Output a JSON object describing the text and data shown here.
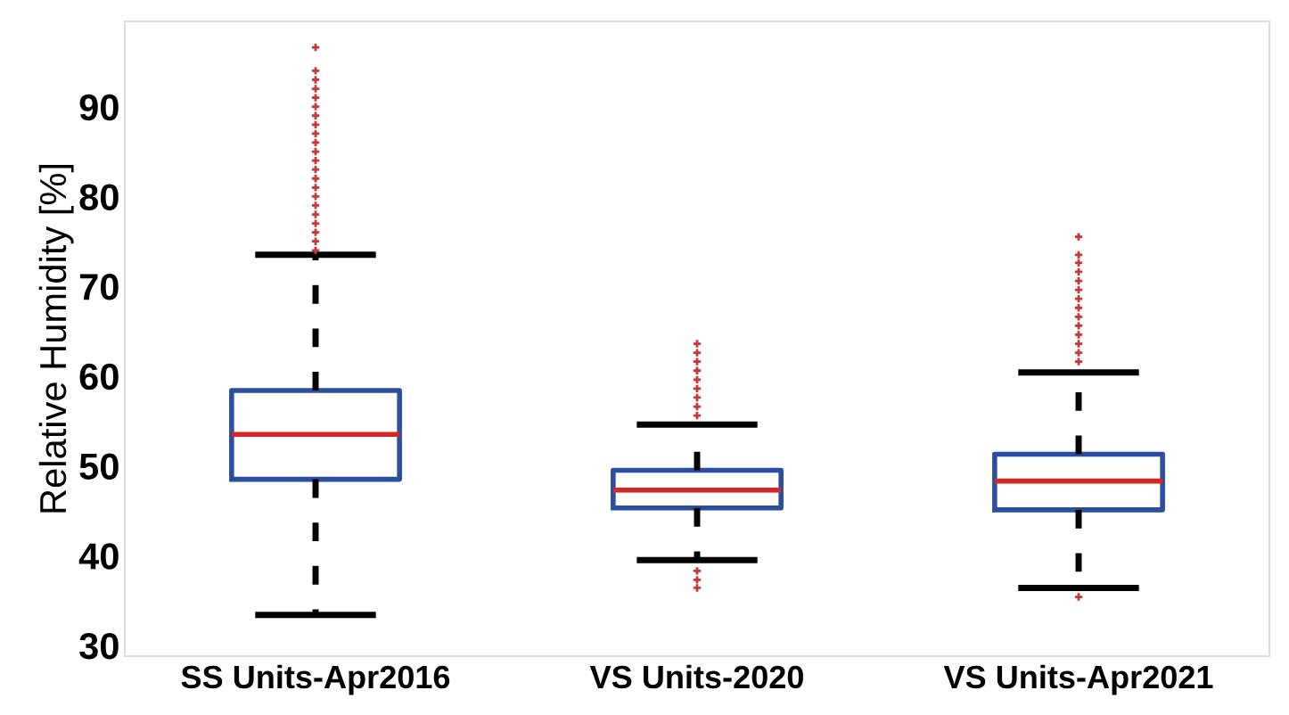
{
  "chart_data": {
    "type": "box",
    "ylabel": "Relative Humidity [%]",
    "categories": [
      "SS Units-Apr2016",
      "VS Units-2020",
      "VS Units-Apr2021"
    ],
    "ylim": [
      28.8,
      99.5
    ],
    "yticks": [
      30,
      40,
      50,
      60,
      70,
      80,
      90
    ],
    "grid": false,
    "color": "#2a4fa0",
    "marker": "cross",
    "line_style": "dashed",
    "boxes": [
      {
        "low": 33.4,
        "q1": 48.5,
        "median": 53.5,
        "q3": 58.4,
        "high": 73.5,
        "outliers": [
          74,
          75,
          76,
          77,
          78,
          79,
          80,
          81,
          82,
          83,
          84,
          85,
          86,
          87,
          88,
          89,
          90,
          91,
          92,
          93,
          94,
          96.6
        ]
      },
      {
        "low": 39.5,
        "q1": 45.3,
        "median": 47.3,
        "q3": 49.5,
        "high": 54.6,
        "outliers": [
          55.6,
          56.6,
          57.6,
          58.6,
          59.6,
          60.6,
          61.6,
          62.6,
          63.6,
          38.3,
          37.3,
          36.4
        ]
      },
      {
        "low": 36.4,
        "q1": 45.1,
        "median": 48.3,
        "q3": 51.3,
        "high": 60.4,
        "outliers": [
          61.6,
          62.6,
          63.6,
          64.6,
          65.6,
          66.6,
          67.6,
          68.6,
          69.6,
          70.6,
          71.6,
          72.6,
          73.5,
          75.5,
          35.4
        ]
      }
    ]
  }
}
